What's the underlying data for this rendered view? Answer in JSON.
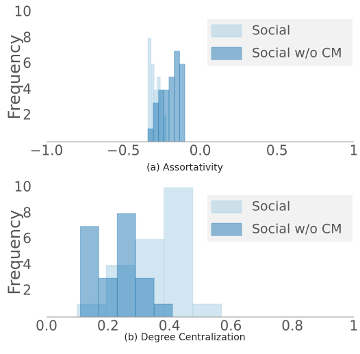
{
  "chart_data": [
    {
      "type": "histogram",
      "caption": "(a) Assortativity",
      "ylabel": "Frequency",
      "xlim": [
        -1,
        1
      ],
      "ylim": [
        0,
        10
      ],
      "xticks": [
        {
          "value": -1,
          "label": "−1.0"
        },
        {
          "value": -0.5,
          "label": "−0.5"
        },
        {
          "value": 0,
          "label": "0.0"
        },
        0.5,
        1
      ],
      "yticks": [
        2,
        4,
        6,
        8,
        10
      ],
      "legend": "upper right",
      "series": [
        {
          "name": "Social",
          "color": "#a6cee3",
          "bins": [
            -0.34,
            -0.32,
            -0.3,
            -0.28,
            -0.26,
            -0.24,
            -0.22
          ],
          "values": [
            8,
            6,
            4,
            5,
            4,
            2
          ]
        },
        {
          "name": "Social w/o CM",
          "color": "#1f78b4",
          "bins": [
            -0.34,
            -0.306,
            -0.271,
            -0.237,
            -0.203,
            -0.169,
            -0.134,
            -0.1
          ],
          "values": [
            1,
            3,
            4,
            4,
            5,
            7,
            6
          ]
        }
      ]
    },
    {
      "type": "histogram",
      "caption": "(b) Degree Centralization",
      "ylabel": "Frequency",
      "xlim": [
        0,
        1
      ],
      "ylim": [
        0,
        10
      ],
      "xticks": [
        {
          "value": 0,
          "label": "0.0"
        },
        0.2,
        0.4,
        0.6,
        0.8,
        1
      ],
      "yticks": [
        2,
        4,
        6,
        8,
        10
      ],
      "legend": "upper right",
      "series": [
        {
          "name": "Social",
          "color": "#a6cee3",
          "bins": [
            0.1,
            0.194,
            0.288,
            0.382,
            0.476,
            0.57
          ],
          "values": [
            1,
            4,
            6,
            10,
            1
          ]
        },
        {
          "name": "Social w/o CM",
          "color": "#1f78b4",
          "bins": [
            0.11,
            0.17,
            0.23,
            0.29,
            0.35,
            0.41
          ],
          "values": [
            7,
            3,
            8,
            3,
            1
          ]
        }
      ]
    }
  ]
}
